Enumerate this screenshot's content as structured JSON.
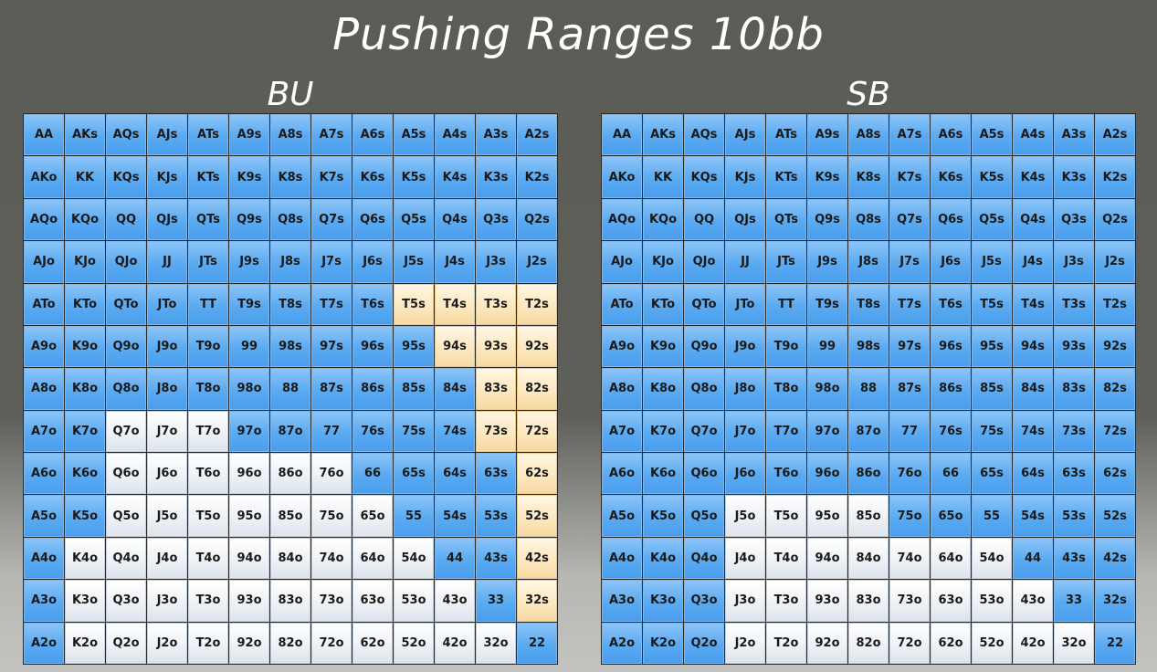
{
  "title": "Pushing Ranges 10bb",
  "colors": {
    "push": "#5aaaf1",
    "fold": "#eef2f6",
    "borderline": "#fde8bf"
  },
  "grids": [
    {
      "label": "BU",
      "rows": [
        {
          "hands": [
            "AA",
            "AKs",
            "AQs",
            "AJs",
            "ATs",
            "A9s",
            "A8s",
            "A7s",
            "A6s",
            "A5s",
            "A4s",
            "A3s",
            "A2s"
          ],
          "states": "bbbbbbbbbbbbb"
        },
        {
          "hands": [
            "AKo",
            "KK",
            "KQs",
            "KJs",
            "KTs",
            "K9s",
            "K8s",
            "K7s",
            "K6s",
            "K5s",
            "K4s",
            "K3s",
            "K2s"
          ],
          "states": "bbbbbbbbbbbbb"
        },
        {
          "hands": [
            "AQo",
            "KQo",
            "QQ",
            "QJs",
            "QTs",
            "Q9s",
            "Q8s",
            "Q7s",
            "Q6s",
            "Q5s",
            "Q4s",
            "Q3s",
            "Q2s"
          ],
          "states": "bbbbbbbbbbbbb"
        },
        {
          "hands": [
            "AJo",
            "KJo",
            "QJo",
            "JJ",
            "JTs",
            "J9s",
            "J8s",
            "J7s",
            "J6s",
            "J5s",
            "J4s",
            "J3s",
            "J2s"
          ],
          "states": "bbbbbbbbbbbbb"
        },
        {
          "hands": [
            "ATo",
            "KTo",
            "QTo",
            "JTo",
            "TT",
            "T9s",
            "T8s",
            "T7s",
            "T6s",
            "T5s",
            "T4s",
            "T3s",
            "T2s"
          ],
          "states": "bbbbbbbbbyyyy"
        },
        {
          "hands": [
            "A9o",
            "K9o",
            "Q9o",
            "J9o",
            "T9o",
            "99",
            "98s",
            "97s",
            "96s",
            "95s",
            "94s",
            "93s",
            "92s"
          ],
          "states": "bbbbbbbbbbyyy"
        },
        {
          "hands": [
            "A8o",
            "K8o",
            "Q8o",
            "J8o",
            "T8o",
            "98o",
            "88",
            "87s",
            "86s",
            "85s",
            "84s",
            "83s",
            "82s"
          ],
          "states": "bbbbbbbbbbbyy"
        },
        {
          "hands": [
            "A7o",
            "K7o",
            "Q7o",
            "J7o",
            "T7o",
            "97o",
            "87o",
            "77",
            "76s",
            "75s",
            "74s",
            "73s",
            "72s"
          ],
          "states": "bbwwwbbbbbbyy"
        },
        {
          "hands": [
            "A6o",
            "K6o",
            "Q6o",
            "J6o",
            "T6o",
            "96o",
            "86o",
            "76o",
            "66",
            "65s",
            "64s",
            "63s",
            "62s"
          ],
          "states": "bbwwwwwwbbbby"
        },
        {
          "hands": [
            "A5o",
            "K5o",
            "Q5o",
            "J5o",
            "T5o",
            "95o",
            "85o",
            "75o",
            "65o",
            "55",
            "54s",
            "53s",
            "52s"
          ],
          "states": "bbwwwwwwwbbby"
        },
        {
          "hands": [
            "A4o",
            "K4o",
            "Q4o",
            "J4o",
            "T4o",
            "94o",
            "84o",
            "74o",
            "64o",
            "54o",
            "44",
            "43s",
            "42s"
          ],
          "states": "bwwwwwwwwwbby"
        },
        {
          "hands": [
            "A3o",
            "K3o",
            "Q3o",
            "J3o",
            "T3o",
            "93o",
            "83o",
            "73o",
            "63o",
            "53o",
            "43o",
            "33",
            "32s"
          ],
          "states": "bwwwwwwwwwwby"
        },
        {
          "hands": [
            "A2o",
            "K2o",
            "Q2o",
            "J2o",
            "T2o",
            "92o",
            "82o",
            "72o",
            "62o",
            "52o",
            "42o",
            "32o",
            "22"
          ],
          "states": "bwwwwwwwwwwwb"
        }
      ]
    },
    {
      "label": "SB",
      "rows": [
        {
          "hands": [
            "AA",
            "AKs",
            "AQs",
            "AJs",
            "ATs",
            "A9s",
            "A8s",
            "A7s",
            "A6s",
            "A5s",
            "A4s",
            "A3s",
            "A2s"
          ],
          "states": "bbbbbbbbbbbbb"
        },
        {
          "hands": [
            "AKo",
            "KK",
            "KQs",
            "KJs",
            "KTs",
            "K9s",
            "K8s",
            "K7s",
            "K6s",
            "K5s",
            "K4s",
            "K3s",
            "K2s"
          ],
          "states": "bbbbbbbbbbbbb"
        },
        {
          "hands": [
            "AQo",
            "KQo",
            "QQ",
            "QJs",
            "QTs",
            "Q9s",
            "Q8s",
            "Q7s",
            "Q6s",
            "Q5s",
            "Q4s",
            "Q3s",
            "Q2s"
          ],
          "states": "bbbbbbbbbbbbb"
        },
        {
          "hands": [
            "AJo",
            "KJo",
            "QJo",
            "JJ",
            "JTs",
            "J9s",
            "J8s",
            "J7s",
            "J6s",
            "J5s",
            "J4s",
            "J3s",
            "J2s"
          ],
          "states": "bbbbbbbbbbbbb"
        },
        {
          "hands": [
            "ATo",
            "KTo",
            "QTo",
            "JTo",
            "TT",
            "T9s",
            "T8s",
            "T7s",
            "T6s",
            "T5s",
            "T4s",
            "T3s",
            "T2s"
          ],
          "states": "bbbbbbbbbbbbb"
        },
        {
          "hands": [
            "A9o",
            "K9o",
            "Q9o",
            "J9o",
            "T9o",
            "99",
            "98s",
            "97s",
            "96s",
            "95s",
            "94s",
            "93s",
            "92s"
          ],
          "states": "bbbbbbbbbbbbb"
        },
        {
          "hands": [
            "A8o",
            "K8o",
            "Q8o",
            "J8o",
            "T8o",
            "98o",
            "88",
            "87s",
            "86s",
            "85s",
            "84s",
            "83s",
            "82s"
          ],
          "states": "bbbbbbbbbbbbb"
        },
        {
          "hands": [
            "A7o",
            "K7o",
            "Q7o",
            "J7o",
            "T7o",
            "97o",
            "87o",
            "77",
            "76s",
            "75s",
            "74s",
            "73s",
            "72s"
          ],
          "states": "bbbbbbbbbbbbb"
        },
        {
          "hands": [
            "A6o",
            "K6o",
            "Q6o",
            "J6o",
            "T6o",
            "96o",
            "86o",
            "76o",
            "66",
            "65s",
            "64s",
            "63s",
            "62s"
          ],
          "states": "bbbbbbbbbbbbb"
        },
        {
          "hands": [
            "A5o",
            "K5o",
            "Q5o",
            "J5o",
            "T5o",
            "95o",
            "85o",
            "75o",
            "65o",
            "55",
            "54s",
            "53s",
            "52s"
          ],
          "states": "bbbwwwwbbbbbb"
        },
        {
          "hands": [
            "A4o",
            "K4o",
            "Q4o",
            "J4o",
            "T4o",
            "94o",
            "84o",
            "74o",
            "64o",
            "54o",
            "44",
            "43s",
            "42s"
          ],
          "states": "bbbwwwwwwwbbb"
        },
        {
          "hands": [
            "A3o",
            "K3o",
            "Q3o",
            "J3o",
            "T3o",
            "93o",
            "83o",
            "73o",
            "63o",
            "53o",
            "43o",
            "33",
            "32s"
          ],
          "states": "bbbwwwwwwwwbb"
        },
        {
          "hands": [
            "A2o",
            "K2o",
            "Q2o",
            "J2o",
            "T2o",
            "92o",
            "82o",
            "72o",
            "62o",
            "52o",
            "42o",
            "32o",
            "22"
          ],
          "states": "bbbwwwwwwwwwb"
        }
      ]
    }
  ]
}
